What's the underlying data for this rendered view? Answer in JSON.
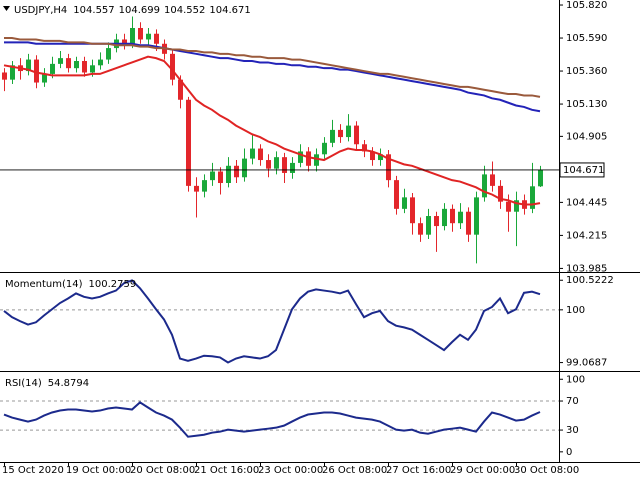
{
  "chart_data": [
    {
      "type": "candlestick",
      "title": "USDJPY,H4",
      "categories": [
        "15 Oct 2020",
        null,
        null,
        null,
        null,
        null,
        null,
        null,
        "19 Oct 00:00",
        null,
        null,
        null,
        null,
        null,
        null,
        null,
        "20 Oct 08:00",
        null,
        null,
        null,
        null,
        null,
        null,
        null,
        "21 Oct 16:00",
        null,
        null,
        null,
        null,
        null,
        null,
        null,
        "23 Oct 00:00",
        null,
        null,
        null,
        null,
        null,
        null,
        null,
        "26 Oct 08:00",
        null,
        null,
        null,
        null,
        null,
        null,
        null,
        "27 Oct 16:00",
        null,
        null,
        null,
        null,
        null,
        null,
        null,
        "29 Oct 00:00",
        null,
        null,
        null,
        null,
        null,
        null,
        null,
        "30 Oct 08:00",
        null,
        null,
        null
      ],
      "open": [
        105.35,
        105.3,
        105.4,
        105.36,
        105.44,
        105.28,
        105.34,
        105.41,
        105.45,
        105.38,
        105.43,
        105.35,
        105.4,
        105.44,
        105.52,
        105.58,
        105.55,
        105.66,
        105.58,
        105.62,
        105.55,
        105.48,
        105.3,
        105.16,
        104.56,
        104.52,
        104.6,
        104.66,
        104.58,
        104.7,
        104.62,
        104.75,
        104.82,
        104.74,
        104.68,
        104.76,
        104.65,
        104.72,
        104.8,
        104.7,
        104.78,
        104.86,
        104.95,
        104.9,
        104.98,
        104.85,
        104.8,
        104.74,
        104.78,
        104.6,
        104.4,
        104.48,
        104.3,
        104.22,
        104.35,
        104.28,
        104.4,
        104.3,
        104.38,
        104.22,
        104.48,
        104.64,
        104.56,
        104.45,
        104.38,
        104.46,
        104.4,
        104.557
      ],
      "high": [
        105.38,
        105.43,
        105.45,
        105.48,
        105.47,
        105.38,
        105.46,
        105.5,
        105.48,
        105.46,
        105.46,
        105.44,
        105.49,
        105.56,
        105.62,
        105.62,
        105.74,
        105.7,
        105.66,
        105.65,
        105.58,
        105.51,
        105.33,
        105.18,
        104.62,
        104.64,
        104.72,
        104.69,
        104.76,
        104.74,
        104.82,
        104.92,
        104.85,
        104.78,
        104.8,
        104.79,
        104.76,
        104.85,
        104.83,
        104.82,
        104.9,
        105.02,
        104.99,
        105.06,
        105.01,
        104.88,
        104.83,
        104.82,
        104.81,
        104.63,
        104.54,
        104.51,
        104.34,
        104.4,
        104.38,
        104.44,
        104.43,
        104.44,
        104.41,
        104.52,
        104.7,
        104.73,
        104.6,
        104.5,
        104.52,
        104.5,
        104.72,
        104.699
      ],
      "low": [
        105.22,
        105.27,
        105.3,
        105.33,
        105.24,
        105.25,
        105.31,
        105.38,
        105.35,
        105.35,
        105.32,
        105.32,
        105.37,
        105.41,
        105.49,
        105.51,
        105.52,
        105.55,
        105.54,
        105.5,
        105.44,
        105.26,
        105.1,
        104.52,
        104.34,
        104.48,
        104.56,
        104.5,
        104.55,
        104.58,
        104.59,
        104.71,
        104.7,
        104.62,
        104.64,
        104.58,
        104.61,
        104.69,
        104.66,
        104.66,
        104.75,
        104.83,
        104.86,
        104.87,
        104.81,
        104.76,
        104.7,
        104.7,
        104.55,
        104.36,
        104.37,
        104.22,
        104.17,
        104.19,
        104.1,
        104.25,
        104.24,
        104.26,
        104.17,
        104.02,
        104.45,
        104.52,
        104.4,
        104.24,
        104.14,
        104.36,
        104.37,
        104.552
      ],
      "close": [
        105.3,
        105.4,
        105.36,
        105.44,
        105.28,
        105.34,
        105.41,
        105.45,
        105.38,
        105.43,
        105.35,
        105.4,
        105.44,
        105.52,
        105.58,
        105.55,
        105.66,
        105.58,
        105.62,
        105.55,
        105.48,
        105.3,
        105.16,
        104.56,
        104.52,
        104.6,
        104.66,
        104.58,
        104.7,
        104.62,
        104.75,
        104.82,
        104.74,
        104.68,
        104.76,
        104.65,
        104.72,
        104.8,
        104.7,
        104.78,
        104.86,
        104.95,
        104.9,
        104.98,
        104.85,
        104.8,
        104.74,
        104.78,
        104.6,
        104.4,
        104.48,
        104.3,
        104.22,
        104.35,
        104.28,
        104.4,
        104.3,
        104.38,
        104.22,
        104.48,
        104.64,
        104.56,
        104.45,
        104.38,
        104.46,
        104.4,
        104.557,
        104.671
      ],
      "up_color": "#1aa83a",
      "down_color": "#e3262b",
      "series": [
        {
          "color": "#e02424",
          "values": [
            105.4,
            105.39,
            105.38,
            105.37,
            105.35,
            105.34,
            105.33,
            105.33,
            105.33,
            105.33,
            105.33,
            105.34,
            105.34,
            105.36,
            105.38,
            105.4,
            105.42,
            105.44,
            105.46,
            105.45,
            105.43,
            105.37,
            105.3,
            105.23,
            105.16,
            105.12,
            105.09,
            105.05,
            105.02,
            104.98,
            104.95,
            104.92,
            104.9,
            104.87,
            104.85,
            104.82,
            104.8,
            104.78,
            104.76,
            104.75,
            104.74,
            104.77,
            104.8,
            104.82,
            104.81,
            104.81,
            104.8,
            104.78,
            104.75,
            104.73,
            104.71,
            104.7,
            104.68,
            104.66,
            104.64,
            104.62,
            104.6,
            104.59,
            104.57,
            104.55,
            104.52,
            104.5,
            104.47,
            104.46,
            104.44,
            104.43,
            104.43,
            104.44
          ]
        },
        {
          "color": "#2323b8",
          "values": [
            105.56,
            105.56,
            105.56,
            105.56,
            105.55,
            105.55,
            105.55,
            105.55,
            105.55,
            105.55,
            105.55,
            105.55,
            105.55,
            105.55,
            105.55,
            105.55,
            105.55,
            105.54,
            105.54,
            105.53,
            105.52,
            105.51,
            105.5,
            105.49,
            105.48,
            105.47,
            105.46,
            105.45,
            105.45,
            105.44,
            105.43,
            105.43,
            105.42,
            105.42,
            105.41,
            105.41,
            105.4,
            105.4,
            105.39,
            105.39,
            105.38,
            105.38,
            105.37,
            105.37,
            105.36,
            105.35,
            105.34,
            105.33,
            105.32,
            105.31,
            105.3,
            105.29,
            105.28,
            105.27,
            105.26,
            105.25,
            105.24,
            105.23,
            105.21,
            105.2,
            105.19,
            105.17,
            105.16,
            105.14,
            105.12,
            105.11,
            105.09,
            105.08
          ]
        },
        {
          "color": "#9a5a3c",
          "values": [
            105.59,
            105.59,
            105.58,
            105.58,
            105.58,
            105.57,
            105.57,
            105.57,
            105.56,
            105.56,
            105.56,
            105.55,
            105.55,
            105.55,
            105.54,
            105.54,
            105.54,
            105.53,
            105.53,
            105.52,
            105.52,
            105.51,
            105.51,
            105.5,
            105.5,
            105.49,
            105.49,
            105.48,
            105.48,
            105.47,
            105.47,
            105.46,
            105.46,
            105.45,
            105.45,
            105.45,
            105.44,
            105.44,
            105.43,
            105.42,
            105.41,
            105.4,
            105.39,
            105.38,
            105.37,
            105.36,
            105.35,
            105.34,
            105.34,
            105.33,
            105.32,
            105.31,
            105.3,
            105.29,
            105.28,
            105.27,
            105.26,
            105.25,
            105.25,
            105.24,
            105.23,
            105.22,
            105.21,
            105.2,
            105.2,
            105.19,
            105.19,
            105.18
          ]
        }
      ],
      "ylim": [
        103.96,
        105.855
      ],
      "yticks": [
        103.985,
        104.215,
        104.445,
        104.905,
        {
          "value": 105.13,
          "label": "105.130"
        },
        {
          "value": 105.36,
          "label": "105.360"
        },
        {
          "value": 105.59,
          "label": "105.590"
        },
        {
          "value": 105.82,
          "label": "105.820"
        }
      ]
    },
    {
      "type": "line",
      "title": "Momentum(14)",
      "color": "#1c2a8c",
      "values": [
        99.98,
        99.87,
        99.8,
        99.74,
        99.78,
        99.9,
        100.01,
        100.12,
        100.2,
        100.29,
        100.23,
        100.2,
        100.23,
        100.29,
        100.34,
        100.47,
        100.52,
        100.38,
        100.2,
        100.01,
        99.83,
        99.56,
        99.14,
        99.1,
        99.14,
        99.19,
        99.18,
        99.16,
        99.07,
        99.14,
        99.18,
        99.16,
        99.14,
        99.18,
        99.29,
        99.65,
        100.01,
        100.2,
        100.32,
        100.36,
        100.34,
        100.32,
        100.29,
        100.34,
        100.1,
        99.87,
        99.94,
        99.98,
        99.8,
        99.72,
        99.69,
        99.65,
        99.56,
        99.47,
        99.38,
        99.29,
        99.43,
        99.56,
        99.47,
        99.65,
        99.98,
        100.05,
        100.2,
        99.94,
        100.01,
        100.3,
        100.32,
        100.2759
      ],
      "ylim": [
        98.92,
        100.65
      ],
      "yticks": [
        99.0687,
        100,
        100.5222
      ],
      "levels": [
        100
      ]
    },
    {
      "type": "line",
      "title": "RSI(14)",
      "color": "#1c2a8c",
      "values": [
        51.4,
        47.2,
        44.4,
        41.7,
        44.4,
        50.0,
        54.2,
        56.9,
        58.3,
        58.3,
        56.9,
        55.6,
        56.9,
        59.7,
        61.1,
        59.7,
        58.3,
        68.1,
        61.1,
        54.2,
        50.0,
        44.4,
        33.3,
        20.8,
        22.2,
        23.6,
        26.4,
        27.8,
        30.6,
        29.2,
        27.8,
        29.2,
        30.6,
        31.9,
        33.3,
        36.1,
        41.7,
        47.2,
        51.4,
        52.8,
        54.2,
        54.2,
        52.8,
        50.0,
        47.2,
        45.8,
        44.4,
        41.7,
        36.1,
        30.6,
        29.2,
        30.6,
        26.4,
        25.0,
        27.8,
        30.6,
        31.9,
        33.3,
        30.6,
        27.8,
        41.7,
        54.2,
        51.4,
        47.2,
        43.1,
        44.4,
        50.0,
        54.8794
      ],
      "ylim": [
        -14,
        110
      ],
      "yticks": [
        0,
        30,
        70,
        100
      ],
      "levels": [
        30,
        70
      ]
    }
  ]
}
